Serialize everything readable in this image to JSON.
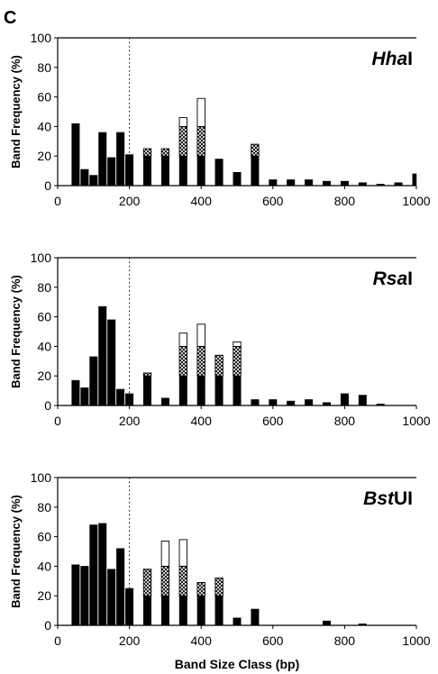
{
  "panel_label": "C",
  "chart_data": [
    {
      "type": "bar",
      "title_italic": "Hha",
      "title_plain": "I",
      "ylabel": "Band Frequency (%)",
      "xlabel": "",
      "xlim": [
        0,
        1000
      ],
      "ylim": [
        0,
        100
      ],
      "xticks": [
        "0",
        "200",
        "400",
        "600",
        "800",
        "1000"
      ],
      "yticks": [
        "0",
        "20",
        "40",
        "60",
        "80",
        "100"
      ],
      "cutoff_line": 200,
      "series": [
        {
          "pattern": "solid",
          "points": [
            [
              50,
              42
            ],
            [
              75,
              11
            ],
            [
              100,
              7
            ],
            [
              125,
              36
            ],
            [
              150,
              19
            ],
            [
              175,
              36
            ],
            [
              200,
              21
            ],
            [
              250,
              20
            ],
            [
              300,
              20
            ],
            [
              350,
              20
            ],
            [
              400,
              20
            ],
            [
              450,
              18
            ],
            [
              500,
              9
            ],
            [
              550,
              20
            ],
            [
              600,
              4
            ],
            [
              650,
              4
            ],
            [
              700,
              4
            ],
            [
              750,
              3
            ],
            [
              800,
              3
            ],
            [
              850,
              2
            ],
            [
              900,
              1
            ],
            [
              950,
              2
            ],
            [
              1000,
              8
            ]
          ]
        },
        {
          "pattern": "crosshatch",
          "points": [
            [
              250,
              5
            ],
            [
              300,
              5
            ],
            [
              350,
              20
            ],
            [
              400,
              20
            ],
            [
              550,
              8
            ]
          ]
        },
        {
          "pattern": "open",
          "points": [
            [
              350,
              6
            ],
            [
              400,
              19
            ]
          ]
        }
      ]
    },
    {
      "type": "bar",
      "title_italic": "Rsa",
      "title_plain": "I",
      "ylabel": "Band Frequency (%)",
      "xlabel": "",
      "xlim": [
        0,
        1000
      ],
      "ylim": [
        0,
        100
      ],
      "xticks": [
        "0",
        "200",
        "400",
        "600",
        "800",
        "1000"
      ],
      "yticks": [
        "0",
        "20",
        "40",
        "60",
        "80",
        "100"
      ],
      "cutoff_line": 200,
      "series": [
        {
          "pattern": "solid",
          "points": [
            [
              50,
              17
            ],
            [
              75,
              12
            ],
            [
              100,
              33
            ],
            [
              125,
              67
            ],
            [
              150,
              58
            ],
            [
              175,
              11
            ],
            [
              200,
              8
            ],
            [
              250,
              20
            ],
            [
              300,
              5
            ],
            [
              350,
              20
            ],
            [
              400,
              20
            ],
            [
              450,
              20
            ],
            [
              500,
              20
            ],
            [
              550,
              4
            ],
            [
              600,
              4
            ],
            [
              650,
              3
            ],
            [
              700,
              4
            ],
            [
              750,
              2
            ],
            [
              800,
              8
            ],
            [
              850,
              7
            ],
            [
              900,
              1
            ]
          ]
        },
        {
          "pattern": "crosshatch",
          "points": [
            [
              250,
              2
            ],
            [
              350,
              20
            ],
            [
              400,
              20
            ],
            [
              450,
              14
            ],
            [
              500,
              20
            ]
          ]
        },
        {
          "pattern": "open",
          "points": [
            [
              350,
              9
            ],
            [
              400,
              15
            ],
            [
              500,
              3
            ]
          ]
        }
      ]
    },
    {
      "type": "bar",
      "title_italic": "Bst",
      "title_plain": "UI",
      "ylabel": "Band Frequency (%)",
      "xlabel": "Band Size Class (bp)",
      "xlim": [
        0,
        1000
      ],
      "ylim": [
        0,
        100
      ],
      "xticks": [
        "0",
        "200",
        "400",
        "600",
        "800",
        "1000"
      ],
      "yticks": [
        "0",
        "20",
        "40",
        "60",
        "80",
        "100"
      ],
      "cutoff_line": 200,
      "series": [
        {
          "pattern": "solid",
          "points": [
            [
              50,
              41
            ],
            [
              75,
              40
            ],
            [
              100,
              68
            ],
            [
              125,
              69
            ],
            [
              150,
              38
            ],
            [
              175,
              52
            ],
            [
              200,
              25
            ],
            [
              250,
              20
            ],
            [
              300,
              20
            ],
            [
              350,
              20
            ],
            [
              400,
              20
            ],
            [
              450,
              20
            ],
            [
              500,
              5
            ],
            [
              550,
              11
            ],
            [
              750,
              3
            ],
            [
              850,
              1
            ]
          ]
        },
        {
          "pattern": "crosshatch",
          "points": [
            [
              250,
              18
            ],
            [
              300,
              20
            ],
            [
              350,
              20
            ],
            [
              400,
              9
            ],
            [
              450,
              12
            ]
          ]
        },
        {
          "pattern": "open",
          "points": [
            [
              300,
              17
            ],
            [
              350,
              18
            ]
          ]
        }
      ]
    }
  ]
}
